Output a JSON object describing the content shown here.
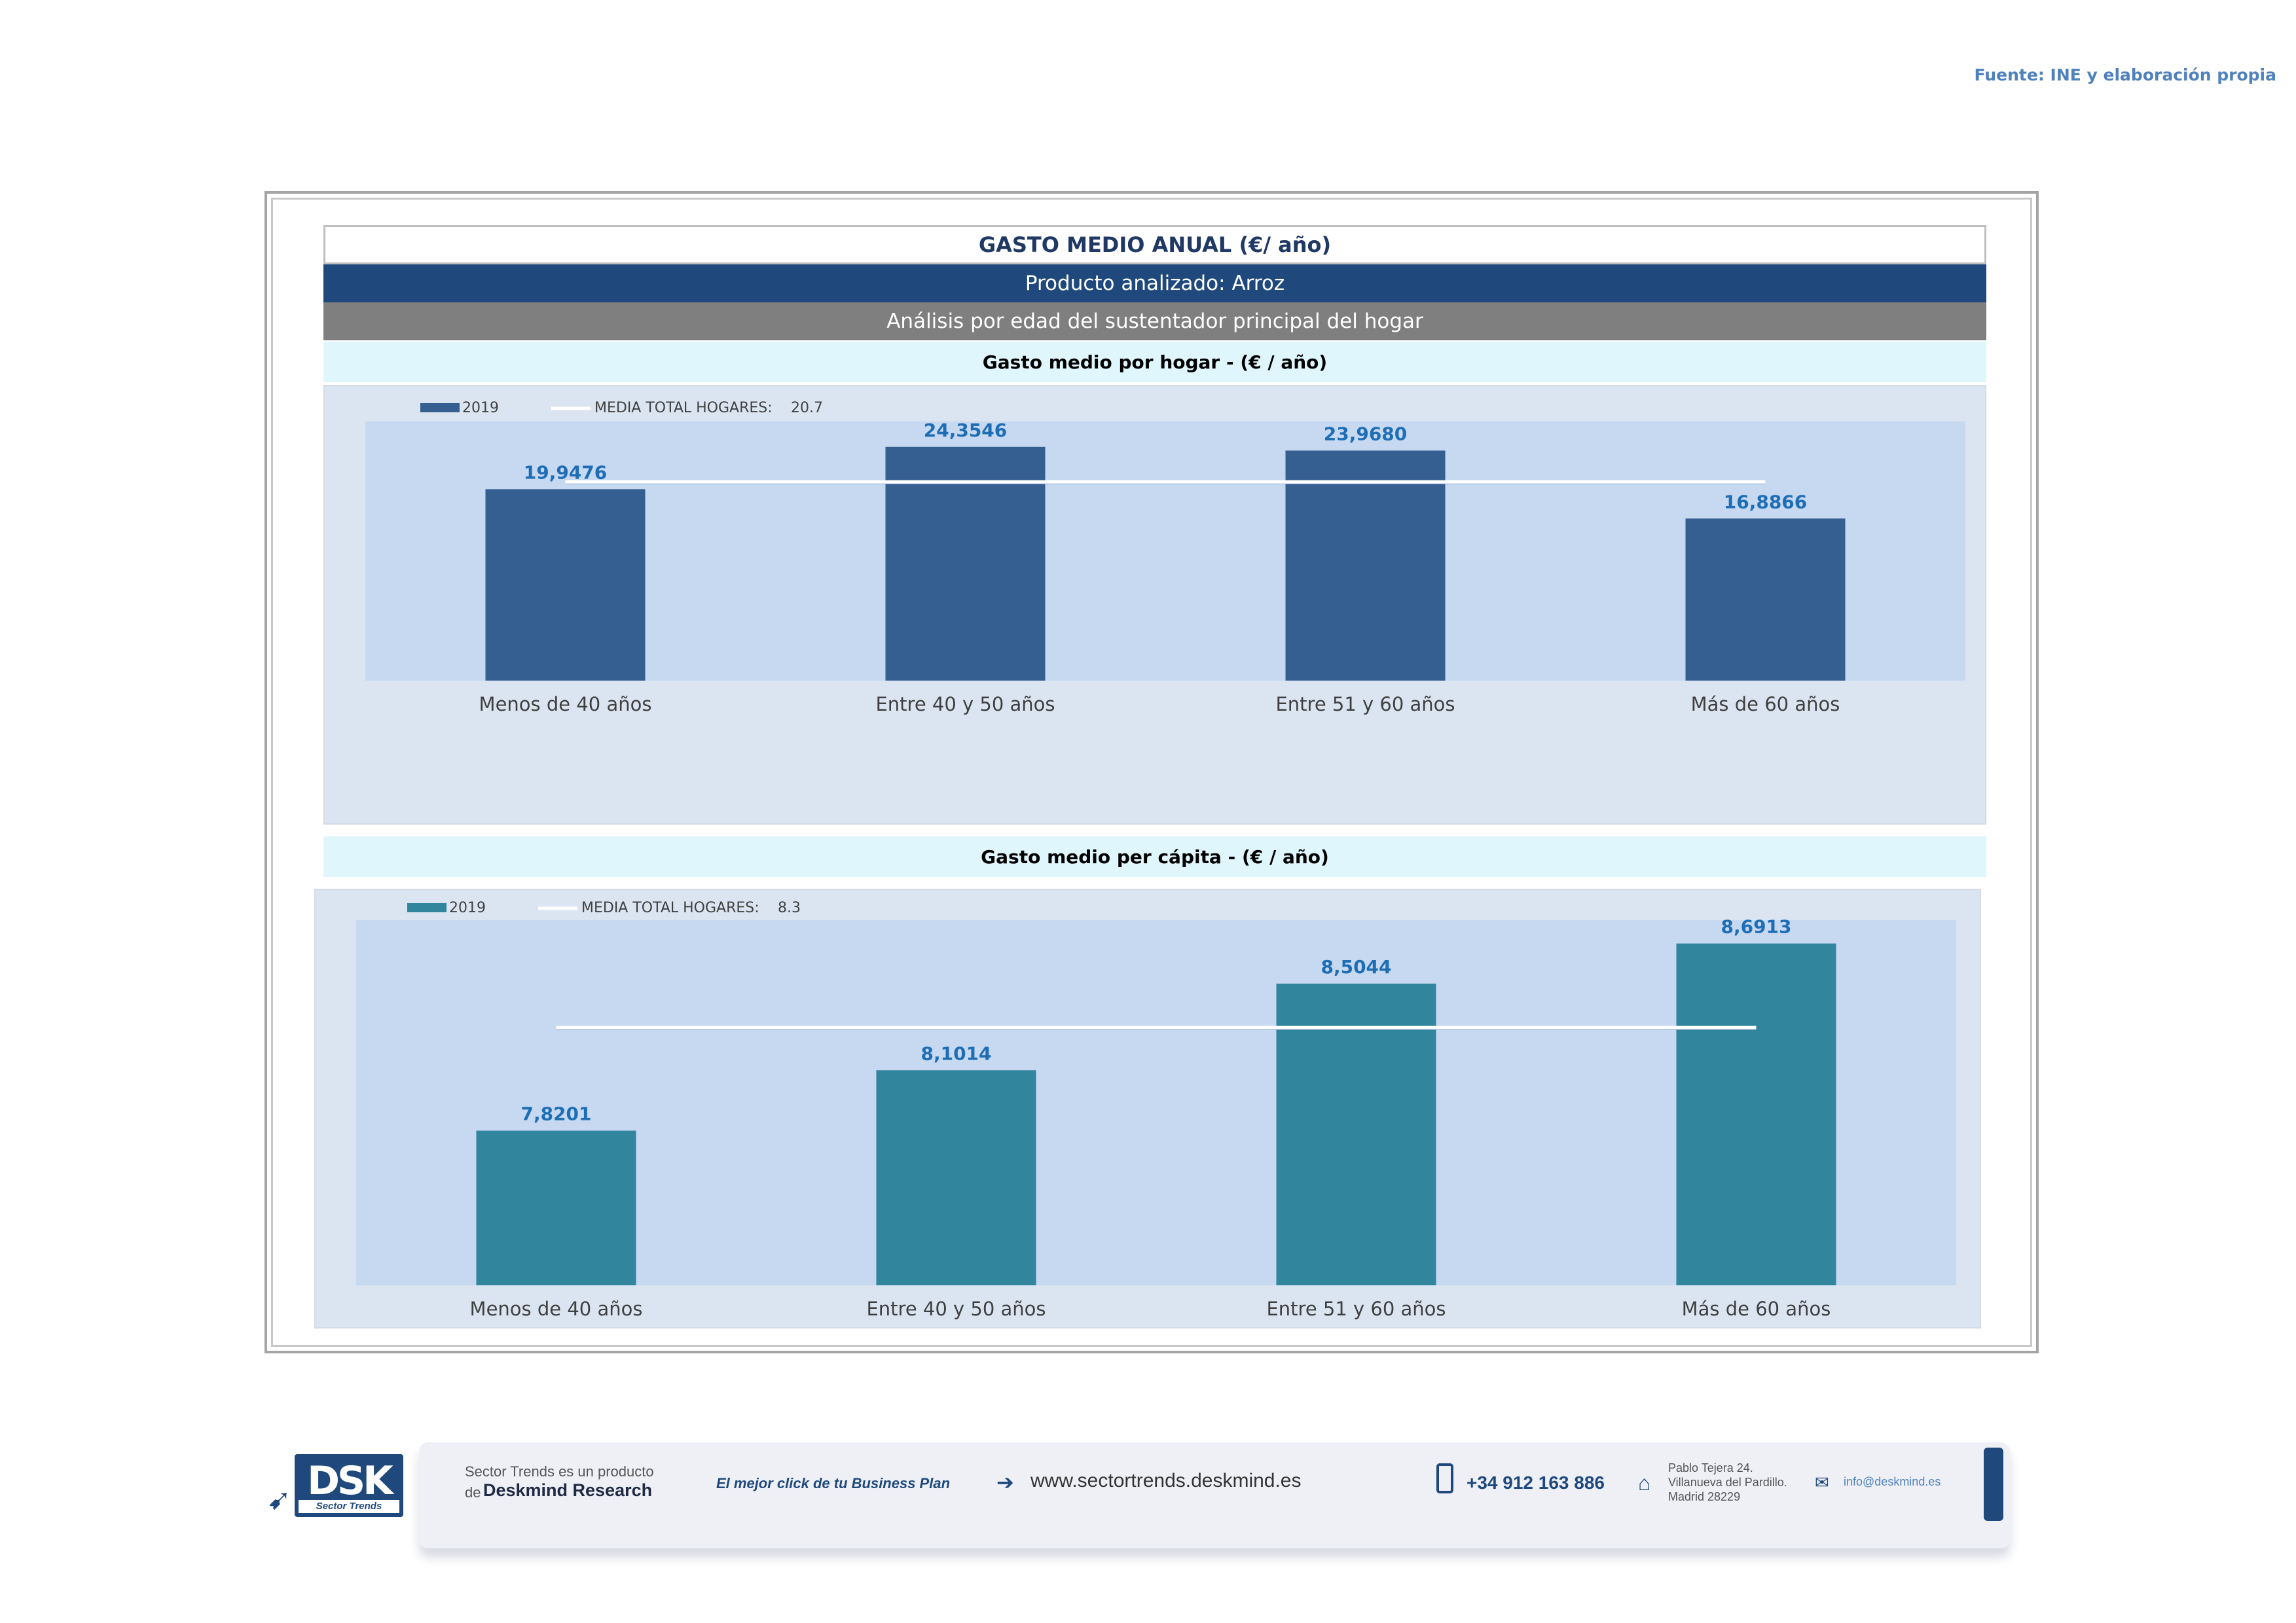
{
  "source": "Fuente: INE y elaboración propia",
  "header": {
    "title": "GASTO MEDIO ANUAL (€/ año)",
    "product": "Producto analizado: Arroz",
    "analysis": "Análisis por edad del sustentador principal del hogar"
  },
  "chart_data": [
    {
      "type": "bar",
      "title": "Gasto medio por hogar -  (€ / año)",
      "categories": [
        "Menos de 40 años",
        "Entre 40 y 50 años",
        "Entre 51  y 60 años",
        "Más de 60 años"
      ],
      "series": [
        {
          "name": "2019",
          "values": [
            19.9476,
            24.3546,
            23.968,
            16.8866
          ],
          "labels": [
            "19,9476",
            "24,3546",
            "23,9680",
            "16,8866"
          ]
        }
      ],
      "reference_line": {
        "name": "MEDIA TOTAL  HOGARES:",
        "value": 20.7,
        "label": "20.7"
      },
      "ylim": [
        0,
        27
      ],
      "legend": "top-left",
      "grid": false,
      "colors": {
        "bar": "#355f91",
        "line": "#ffffff",
        "plot_bg": "#c6d9f1",
        "label": "#1f6eb5"
      }
    },
    {
      "type": "bar",
      "title": "Gasto medio per cápita -  (€ / año)",
      "categories": [
        "Menos de 40 años",
        "Entre 40 y 50 años",
        "Entre 51  y 60 años",
        "Más de 60 años"
      ],
      "series": [
        {
          "name": "2019",
          "values": [
            7.8201,
            8.1014,
            8.5044,
            8.6913
          ],
          "labels": [
            "7,8201",
            "8,1014",
            "8,5044",
            "8,6913"
          ]
        }
      ],
      "reference_line": {
        "name": "MEDIA TOTAL  HOGARES:",
        "value": 8.3,
        "label": "8.3"
      },
      "ylim": [
        7.1,
        8.8
      ],
      "legend": "top-left",
      "grid": false,
      "colors": {
        "bar": "#31859c",
        "line": "#ffffff",
        "plot_bg": "#c6d9f1",
        "label": "#1f6eb5"
      }
    }
  ],
  "footer": {
    "logo_text": "DSK",
    "logo_sub": "Sector Trends",
    "product_line1": "Sector Trends es un producto",
    "product_line2_prefix": "de",
    "brand": "Deskmind Research",
    "slogan": "El mejor click de tu Business Plan",
    "website": "www.sectortrends.deskmind.es",
    "phone": "+34 912 163 886",
    "address_line1": "Pablo Tejera 24.",
    "address_line2": "Villanueva del Pardillo.",
    "address_line3": "Madrid 28229",
    "email": "info@deskmind.es",
    "icons": [
      "arrow-icon",
      "login-icon",
      "phone-icon",
      "home-icon",
      "mail-icon"
    ]
  }
}
